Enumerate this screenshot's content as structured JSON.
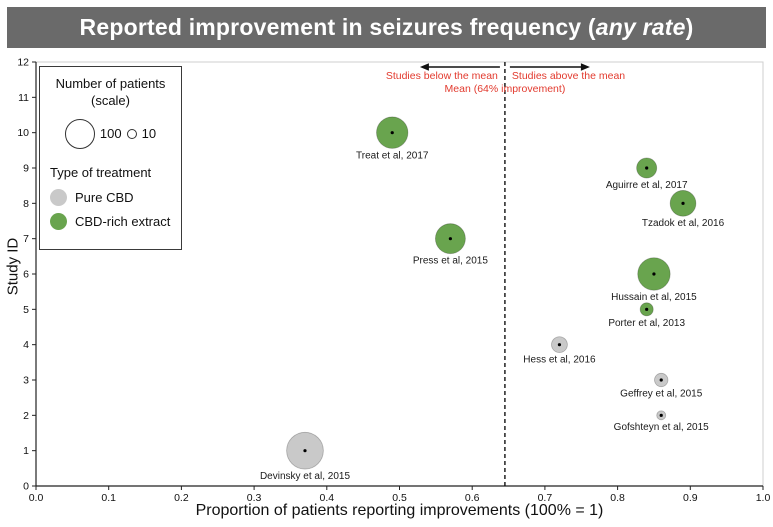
{
  "title": {
    "prefix": "Reported improvement in seizures frequency (",
    "italic": "any rate",
    "suffix": ")",
    "bar_color": "#6a6a6a",
    "text_color": "#ffffff"
  },
  "legend": {
    "patients_header_line1": "Number of patients",
    "patients_header_line2": "(scale)",
    "scale_big_label": "100",
    "scale_small_label": "10",
    "treatment_header": "Type of treatment",
    "items": [
      {
        "label": "Pure CBD",
        "color": "#c9c9c9"
      },
      {
        "label": "CBD-rich extract",
        "color": "#69a44e"
      }
    ]
  },
  "chart_data": {
    "type": "scatter",
    "subtype": "bubble",
    "title": "Reported improvement in seizures frequency (any rate)",
    "xlabel": "Proportion of patients reporting improvements (100% = 1)",
    "ylabel": "Study ID",
    "xlim": [
      0.0,
      1.0
    ],
    "ylim": [
      0,
      12
    ],
    "xtick_labels": [
      "0.0",
      "0.1",
      "0.2",
      "0.3",
      "0.4",
      "0.5",
      "0.6",
      "0.7",
      "0.8",
      "0.9",
      "1.0"
    ],
    "ytick_labels": [
      "0",
      "1",
      "2",
      "3",
      "4",
      "5",
      "6",
      "7",
      "8",
      "9",
      "10",
      "11",
      "12"
    ],
    "grid": false,
    "legend_position": "upper-left",
    "mean_x": 0.645,
    "bubble_scale": {
      "r_at_100": 15
    },
    "annotations": {
      "below": "Studies below the mean",
      "above": "Studies above the mean",
      "mean": "Mean (64% improvement)"
    },
    "colors": {
      "annotation": "#e23a2e",
      "mean_line": "#111111",
      "pure_cbd": "#c9c9c9",
      "cbd_rich": "#69a44e"
    },
    "colors_by_treatment": {
      "Pure CBD": "#c9c9c9",
      "CBD-rich extract": "#69a44e"
    },
    "points": [
      {
        "label": "Treat et al, 2017",
        "x": 0.49,
        "study_id": 10,
        "patients_est": 110,
        "treatment": "CBD-rich extract"
      },
      {
        "label": "Aguirre et al, 2017",
        "x": 0.84,
        "study_id": 9,
        "patients_est": 45,
        "treatment": "CBD-rich extract"
      },
      {
        "label": "Tzadok et al, 2016",
        "x": 0.89,
        "study_id": 8,
        "patients_est": 74,
        "treatment": "CBD-rich extract"
      },
      {
        "label": "Press et al, 2015",
        "x": 0.57,
        "study_id": 7,
        "patients_est": 100,
        "treatment": "CBD-rich extract"
      },
      {
        "label": "Hussain et al, 2015",
        "x": 0.85,
        "study_id": 6,
        "patients_est": 117,
        "treatment": "CBD-rich extract"
      },
      {
        "label": "Porter et al, 2013",
        "x": 0.84,
        "study_id": 5,
        "patients_est": 19,
        "treatment": "CBD-rich extract"
      },
      {
        "label": "Hess et al, 2016",
        "x": 0.72,
        "study_id": 4,
        "patients_est": 28,
        "treatment": "Pure CBD"
      },
      {
        "label": "Geffrey et al, 2015",
        "x": 0.86,
        "study_id": 3,
        "patients_est": 20,
        "treatment": "Pure CBD"
      },
      {
        "label": "Gofshteyn et al, 2015",
        "x": 0.86,
        "study_id": 2,
        "patients_est": 9,
        "treatment": "Pure CBD"
      },
      {
        "label": "Devinsky et al, 2015",
        "x": 0.37,
        "study_id": 1,
        "patients_est": 150,
        "treatment": "Pure CBD"
      }
    ]
  }
}
